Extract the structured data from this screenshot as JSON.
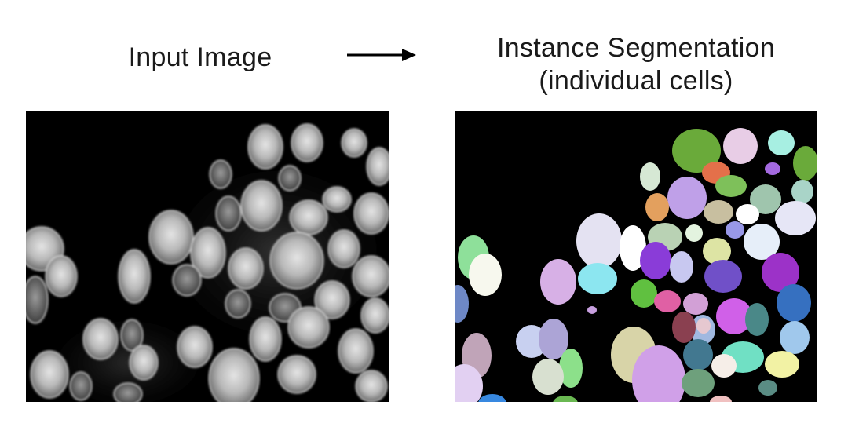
{
  "labels": {
    "input": "Input Image",
    "output_line1": "Instance Segmentation",
    "output_line2": "(individual cells)"
  },
  "icons": {
    "flow_arrow": "arrow-right-icon"
  },
  "colors": {
    "background": "#ffffff",
    "panel_background": "#000000",
    "text": "#1a1a1a"
  }
}
